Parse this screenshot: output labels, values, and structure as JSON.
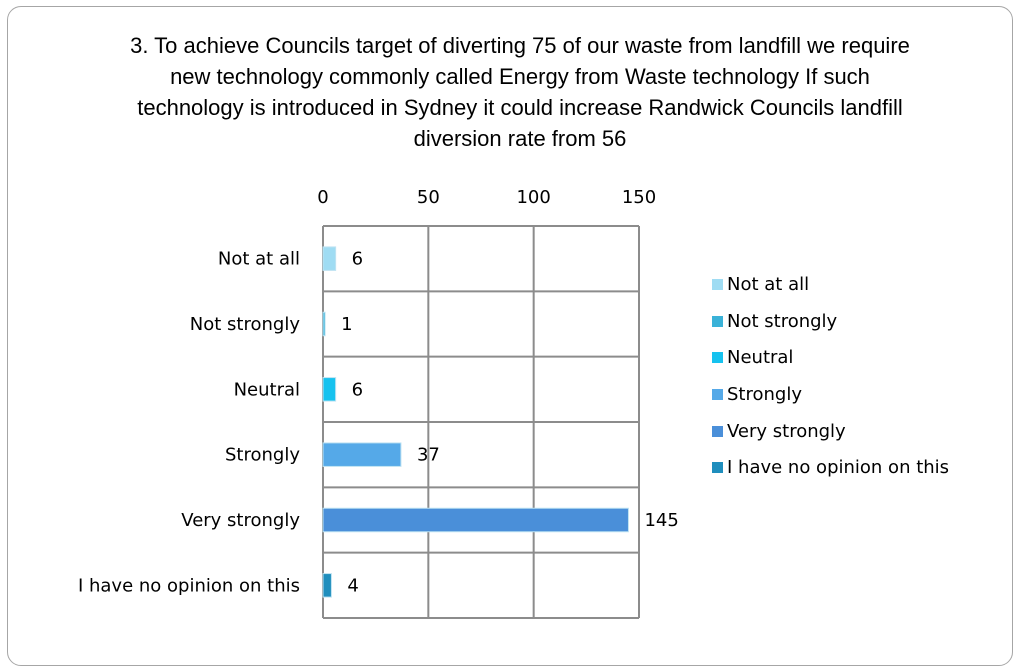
{
  "chart_data": {
    "type": "bar",
    "orientation": "horizontal",
    "title": "3. To achieve Councils target of diverting 75 of our waste from landfill we require new technology commonly called Energy from Waste technology If such technology is introduced in Sydney it could increase Randwick Councils landfill diversion rate from 56",
    "categories": [
      "Not at all",
      "Not strongly",
      "Neutral",
      "Strongly",
      "Very strongly",
      "I have no opinion on this"
    ],
    "values": [
      6,
      1,
      6,
      37,
      145,
      4
    ],
    "data_labels": [
      "6",
      "1",
      "6",
      "37",
      "145",
      "4"
    ],
    "colors": [
      "#9fdcf3",
      "#3ab2d8",
      "#16c2ef",
      "#55a9e8",
      "#4a8fd9",
      "#1f8ebd"
    ],
    "xlim": [
      0,
      150
    ],
    "xticks": [
      "0",
      "50",
      "100",
      "150"
    ],
    "x_axis_position": "top",
    "grid": true,
    "legend_position": "right",
    "legend": [
      "Not at all",
      "Not strongly",
      "Neutral",
      "Strongly",
      "Very strongly",
      "I have no opinion on this"
    ]
  }
}
